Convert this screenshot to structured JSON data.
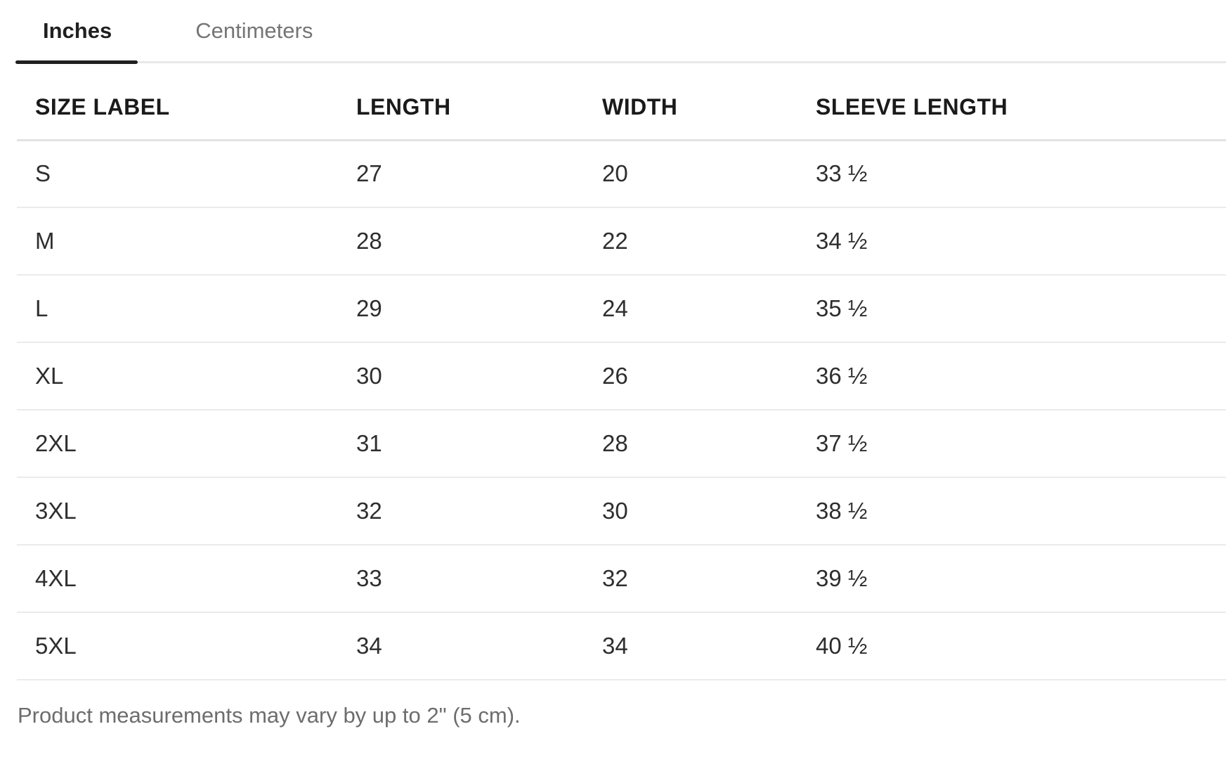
{
  "tabs": {
    "items": [
      {
        "label": "Inches",
        "active": true
      },
      {
        "label": "Centimeters",
        "active": false
      }
    ]
  },
  "table": {
    "columns": [
      "SIZE LABEL",
      "LENGTH",
      "WIDTH",
      "SLEEVE LENGTH"
    ],
    "rows": [
      {
        "size": "S",
        "length": "27",
        "width": "20",
        "sleeve": "33 ½"
      },
      {
        "size": "M",
        "length": "28",
        "width": "22",
        "sleeve": "34 ½"
      },
      {
        "size": "L",
        "length": "29",
        "width": "24",
        "sleeve": "35 ½"
      },
      {
        "size": "XL",
        "length": "30",
        "width": "26",
        "sleeve": "36 ½"
      },
      {
        "size": "2XL",
        "length": "31",
        "width": "28",
        "sleeve": "37 ½"
      },
      {
        "size": "3XL",
        "length": "32",
        "width": "30",
        "sleeve": "38 ½"
      },
      {
        "size": "4XL",
        "length": "33",
        "width": "32",
        "sleeve": "39 ½"
      },
      {
        "size": "5XL",
        "length": "34",
        "width": "34",
        "sleeve": "40 ½"
      }
    ]
  },
  "footer": {
    "note": "Product measurements may vary by up to 2\" (5 cm)."
  },
  "colors": {
    "active_tab": "#1f1f1f",
    "inactive_tab": "#757575",
    "header_text": "#1a1a1a",
    "cell_text": "#2e2e2e",
    "tabbar_divider": "#e8e8e8",
    "header_divider": "#e2e2e2",
    "row_divider": "#ebebeb",
    "footer_text": "#6d6d6d"
  }
}
